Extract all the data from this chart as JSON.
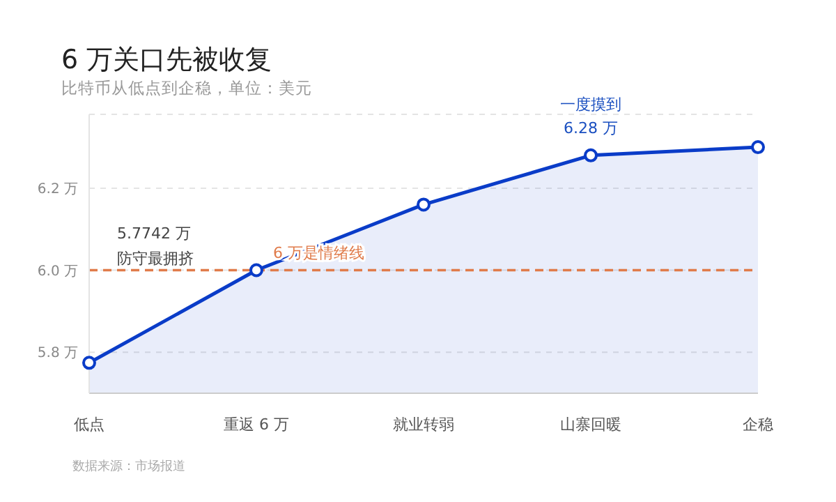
{
  "chart_data": {
    "type": "area",
    "title": "6 万关口先被收复",
    "subtitle": "比特币从低点到企稳，单位：美元",
    "categories": [
      "低点",
      "重返 6 万",
      "就业转弱",
      "山寨回暖",
      "企稳"
    ],
    "series": [
      {
        "color": "#0a3cc8",
        "values": [
          5.7742,
          6.0,
          6.16,
          6.28,
          6.3
        ]
      }
    ],
    "ylim": [
      5.7,
      6.38
    ],
    "yticks": [
      {
        "value": 5.8,
        "label": "5.8 万"
      },
      {
        "value": 6.0,
        "label": "6.0 万"
      },
      {
        "value": 6.2,
        "label": "6.2 万"
      }
    ],
    "grid": "y",
    "marker": "circle",
    "legend": false,
    "ref_lines": [
      {
        "axis": "y",
        "value": 6.0,
        "label": "6 万是情绪线",
        "color": "#e07b4a",
        "line_style": "dashed"
      }
    ],
    "annotations": [
      "5.7742 万",
      "防守最拥挤",
      {
        "text": "一度摸到6.28 万",
        "x": "山寨回暖",
        "y": 6.28
      },
      "数据来源：市场报道"
    ]
  }
}
